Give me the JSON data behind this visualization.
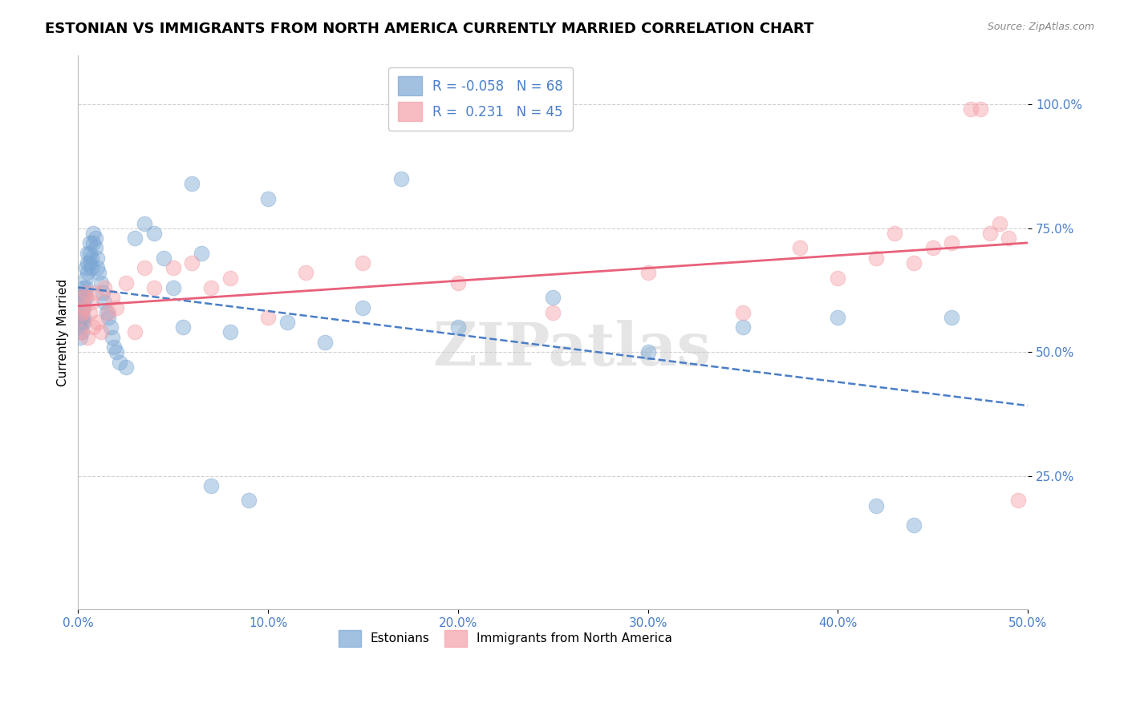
{
  "title": "ESTONIAN VS IMMIGRANTS FROM NORTH AMERICA CURRENTLY MARRIED CORRELATION CHART",
  "source": "Source: ZipAtlas.com",
  "ylabel": "Currently Married",
  "xlim": [
    0.0,
    0.5
  ],
  "ylim": [
    -0.02,
    1.1
  ],
  "xticks": [
    0.0,
    0.1,
    0.2,
    0.3,
    0.4,
    0.5
  ],
  "xtick_labels": [
    "0.0%",
    "10.0%",
    "20.0%",
    "30.0%",
    "40.0%",
    "50.0%"
  ],
  "yticks": [
    0.25,
    0.5,
    0.75,
    1.0
  ],
  "ytick_labels": [
    "25.0%",
    "50.0%",
    "75.0%",
    "100.0%"
  ],
  "legend_r1": "R = -0.058",
  "legend_n1": "N = 68",
  "legend_r2": "R =  0.231",
  "legend_n2": "N = 45",
  "color_estonian": "#7BA7D4",
  "color_immigrant": "#F4A0A8",
  "color_line_estonian": "#4A7EC7",
  "color_line_immigrant": "#E8607A",
  "color_ytick": "#4A7EC7",
  "color_xtick": "#4A7EC7",
  "watermark": "ZIPatlas",
  "background_color": "#FFFFFF",
  "grid_color": "#CCCCCC",
  "title_fontsize": 13,
  "axis_label_fontsize": 11,
  "tick_fontsize": 11,
  "estonian_x": [
    0.001,
    0.001,
    0.001,
    0.002,
    0.002,
    0.002,
    0.002,
    0.002,
    0.003,
    0.003,
    0.003,
    0.003,
    0.003,
    0.003,
    0.004,
    0.004,
    0.004,
    0.004,
    0.005,
    0.005,
    0.005,
    0.006,
    0.006,
    0.006,
    0.007,
    0.007,
    0.008,
    0.008,
    0.009,
    0.009,
    0.01,
    0.01,
    0.011,
    0.012,
    0.013,
    0.014,
    0.015,
    0.016,
    0.017,
    0.018,
    0.019,
    0.02,
    0.022,
    0.025,
    0.03,
    0.035,
    0.04,
    0.045,
    0.05,
    0.055,
    0.06,
    0.065,
    0.07,
    0.08,
    0.09,
    0.1,
    0.11,
    0.13,
    0.15,
    0.17,
    0.2,
    0.25,
    0.3,
    0.35,
    0.4,
    0.42,
    0.44,
    0.46
  ],
  "estonian_y": [
    0.57,
    0.55,
    0.53,
    0.61,
    0.59,
    0.57,
    0.56,
    0.54,
    0.63,
    0.62,
    0.6,
    0.59,
    0.57,
    0.56,
    0.67,
    0.65,
    0.63,
    0.61,
    0.7,
    0.68,
    0.66,
    0.72,
    0.7,
    0.68,
    0.69,
    0.67,
    0.74,
    0.72,
    0.73,
    0.71,
    0.69,
    0.67,
    0.66,
    0.64,
    0.62,
    0.6,
    0.58,
    0.57,
    0.55,
    0.53,
    0.51,
    0.5,
    0.48,
    0.47,
    0.73,
    0.76,
    0.74,
    0.69,
    0.63,
    0.55,
    0.84,
    0.7,
    0.23,
    0.54,
    0.2,
    0.81,
    0.56,
    0.52,
    0.59,
    0.85,
    0.55,
    0.61,
    0.5,
    0.55,
    0.57,
    0.19,
    0.15,
    0.57
  ],
  "immigrant_x": [
    0.001,
    0.001,
    0.002,
    0.003,
    0.003,
    0.004,
    0.005,
    0.006,
    0.007,
    0.008,
    0.009,
    0.01,
    0.012,
    0.014,
    0.016,
    0.018,
    0.02,
    0.025,
    0.03,
    0.035,
    0.04,
    0.05,
    0.06,
    0.07,
    0.08,
    0.1,
    0.12,
    0.15,
    0.2,
    0.25,
    0.3,
    0.35,
    0.38,
    0.4,
    0.42,
    0.43,
    0.44,
    0.45,
    0.46,
    0.47,
    0.475,
    0.48,
    0.485,
    0.49,
    0.495
  ],
  "immigrant_y": [
    0.57,
    0.54,
    0.58,
    0.59,
    0.61,
    0.62,
    0.53,
    0.58,
    0.6,
    0.55,
    0.62,
    0.56,
    0.54,
    0.63,
    0.58,
    0.61,
    0.59,
    0.64,
    0.54,
    0.67,
    0.63,
    0.67,
    0.68,
    0.63,
    0.65,
    0.57,
    0.66,
    0.68,
    0.64,
    0.58,
    0.66,
    0.58,
    0.71,
    0.65,
    0.69,
    0.74,
    0.68,
    0.71,
    0.72,
    0.99,
    0.99,
    0.74,
    0.76,
    0.73,
    0.2
  ]
}
